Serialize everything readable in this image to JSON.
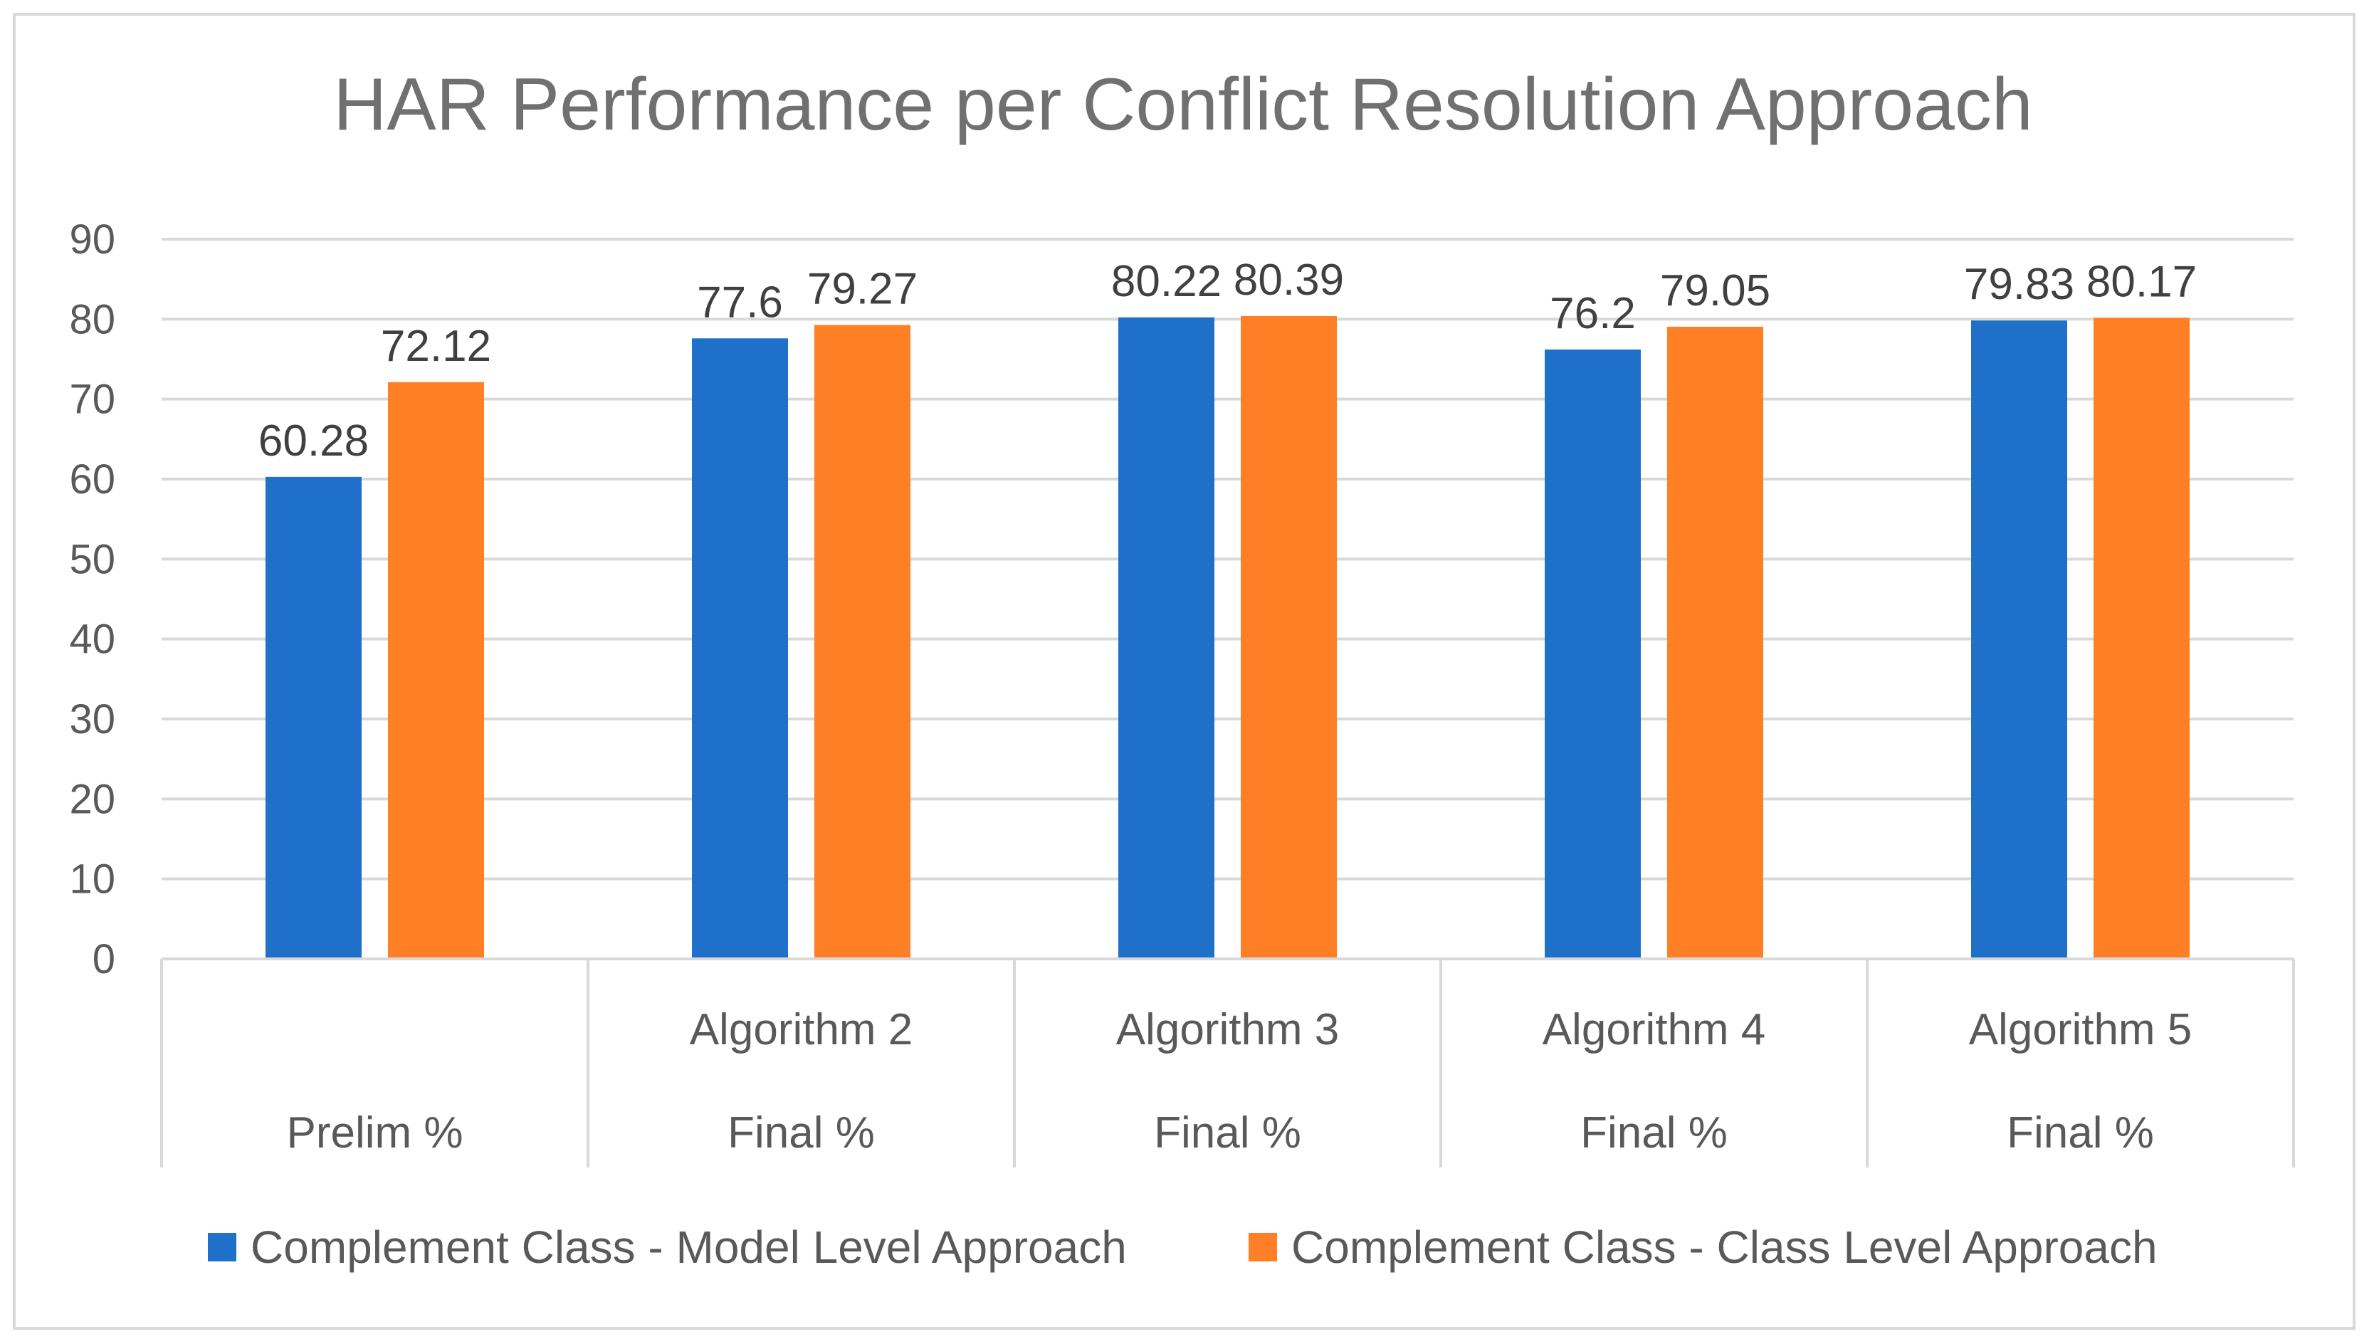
{
  "chart_data": {
    "type": "bar",
    "title": "HAR Performance per Conflict Resolution Approach",
    "categories": [
      {
        "top": "",
        "bottom": "Prelim %"
      },
      {
        "top": "Algorithm 2",
        "bottom": "Final %"
      },
      {
        "top": "Algorithm 3",
        "bottom": "Final %"
      },
      {
        "top": "Algorithm 4",
        "bottom": "Final %"
      },
      {
        "top": "Algorithm 5",
        "bottom": "Final %"
      }
    ],
    "series": [
      {
        "name": "Complement Class - Model Level Approach",
        "color": "#1f70c9",
        "values": [
          60.28,
          77.6,
          80.22,
          76.2,
          79.83
        ],
        "labels": [
          "60.28",
          "77.6",
          "80.22",
          "76.2",
          "79.83"
        ]
      },
      {
        "name": "Complement Class - Class Level Approach",
        "color": "#ff7f27",
        "values": [
          72.12,
          79.27,
          80.39,
          79.05,
          80.17
        ],
        "labels": [
          "72.12",
          "79.27",
          "80.39",
          "79.05",
          "80.17"
        ]
      }
    ],
    "ylim": [
      0,
      90
    ],
    "yticks": [
      "0",
      "10",
      "20",
      "30",
      "40",
      "50",
      "60",
      "70",
      "80",
      "90"
    ],
    "xlabel": "",
    "ylabel": "",
    "grid": true,
    "legend": "bottom"
  }
}
